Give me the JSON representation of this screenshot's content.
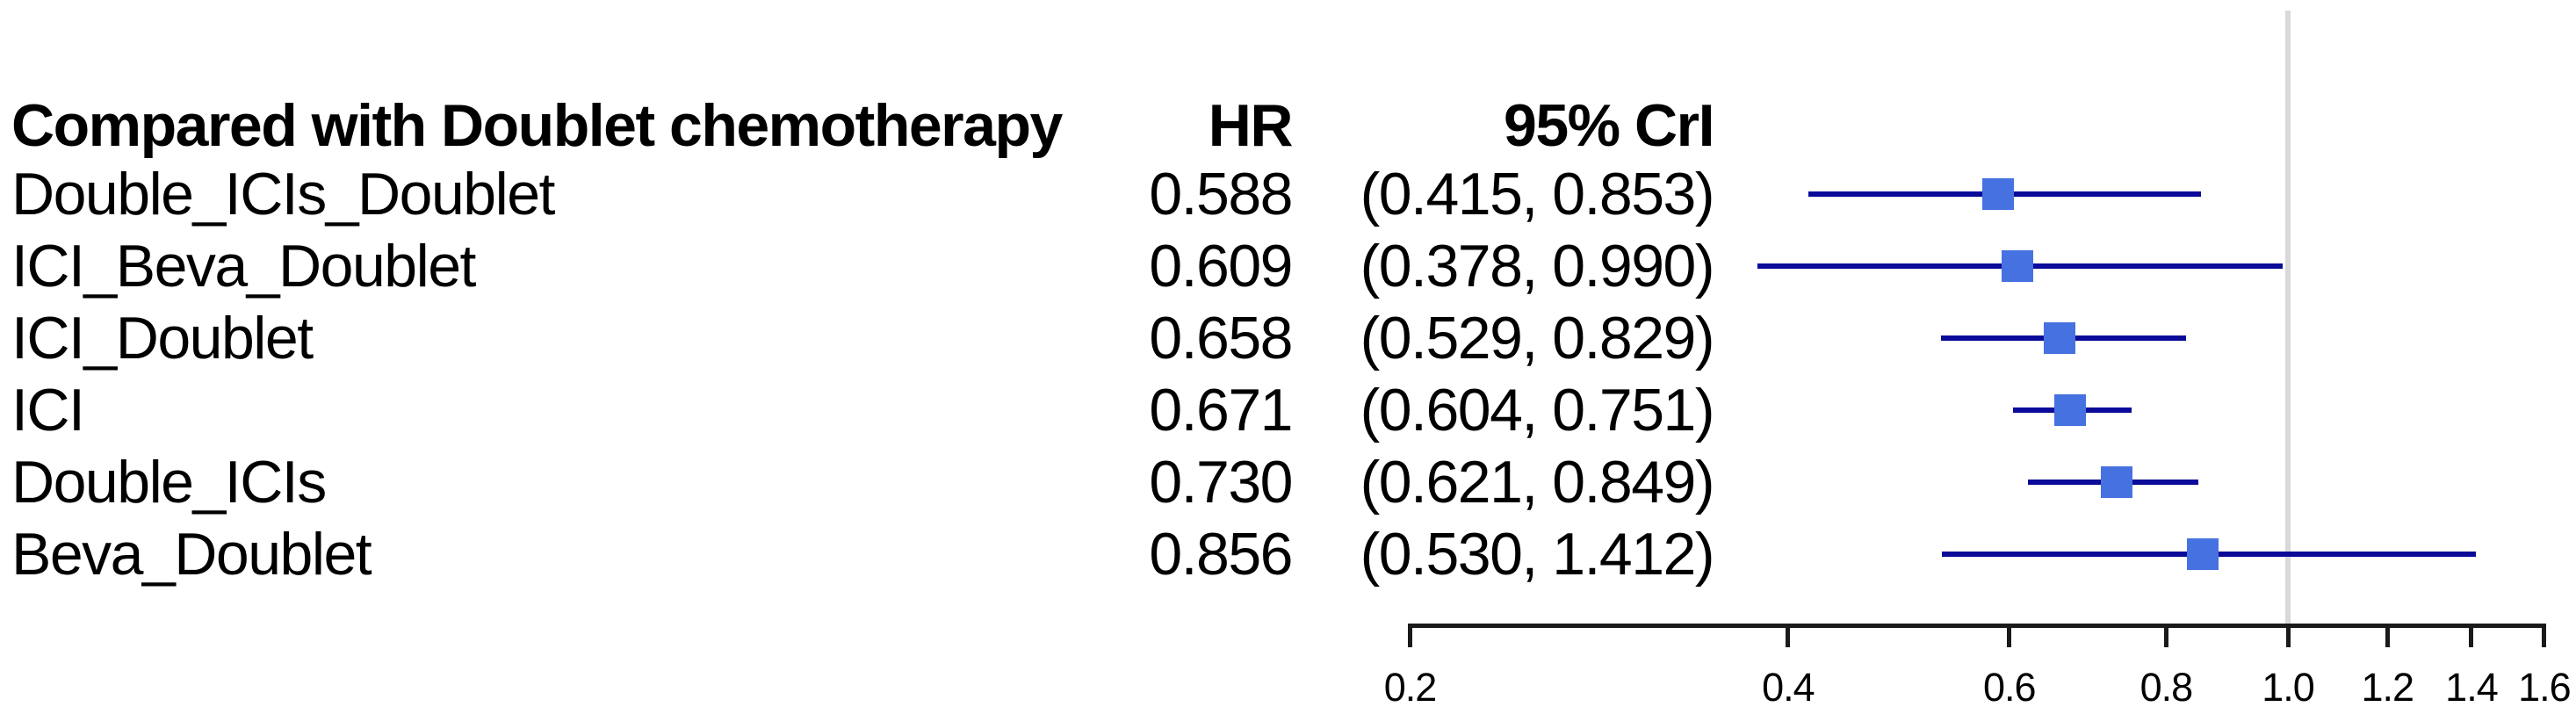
{
  "table": {
    "comparator_header": "Compared with Doublet chemotherapy",
    "hr_header": "HR",
    "cri_header": "95% CrI"
  },
  "colors": {
    "marker": "#4671E0",
    "ci_line": "#0B0B99",
    "reference_line": "#D9D9D9",
    "axis": "#1A1A1A",
    "text": "#000000"
  },
  "chart_data": {
    "type": "forest",
    "scale": "log",
    "comparator_label": "Compared with Doublet chemotherapy",
    "rows": [
      {
        "label": "Double_ICIs_Doublet",
        "hr": 0.588,
        "ci_low": 0.415,
        "ci_high": 0.853,
        "hr_text": "0.588",
        "cri_text": "(0.415, 0.853)"
      },
      {
        "label": "ICI_Beva_Doublet",
        "hr": 0.609,
        "ci_low": 0.378,
        "ci_high": 0.99,
        "hr_text": "0.609",
        "cri_text": "(0.378, 0.990)"
      },
      {
        "label": "ICI_Doublet",
        "hr": 0.658,
        "ci_low": 0.529,
        "ci_high": 0.829,
        "hr_text": "0.658",
        "cri_text": "(0.529, 0.829)"
      },
      {
        "label": "ICI",
        "hr": 0.671,
        "ci_low": 0.604,
        "ci_high": 0.751,
        "hr_text": "0.671",
        "cri_text": "(0.604, 0.751)"
      },
      {
        "label": "Double_ICIs",
        "hr": 0.73,
        "ci_low": 0.621,
        "ci_high": 0.849,
        "hr_text": "0.730",
        "cri_text": "(0.621, 0.849)"
      },
      {
        "label": "Beva_Doublet",
        "hr": 0.856,
        "ci_low": 0.53,
        "ci_high": 1.412,
        "hr_text": "0.856",
        "cri_text": "(0.530, 1.412)"
      }
    ],
    "x_axis": {
      "ticks": [
        0.2,
        0.4,
        0.6,
        0.8,
        1.0,
        1.2,
        1.4,
        1.6
      ],
      "tick_labels": [
        "0.2",
        "0.4",
        "0.6",
        "0.8",
        "1.0",
        "1.2",
        "1.4",
        "1.6"
      ],
      "range": [
        0.2,
        1.6
      ],
      "reference_line": 1.0
    },
    "marker_shape": "square",
    "legend": null,
    "grid": false
  }
}
